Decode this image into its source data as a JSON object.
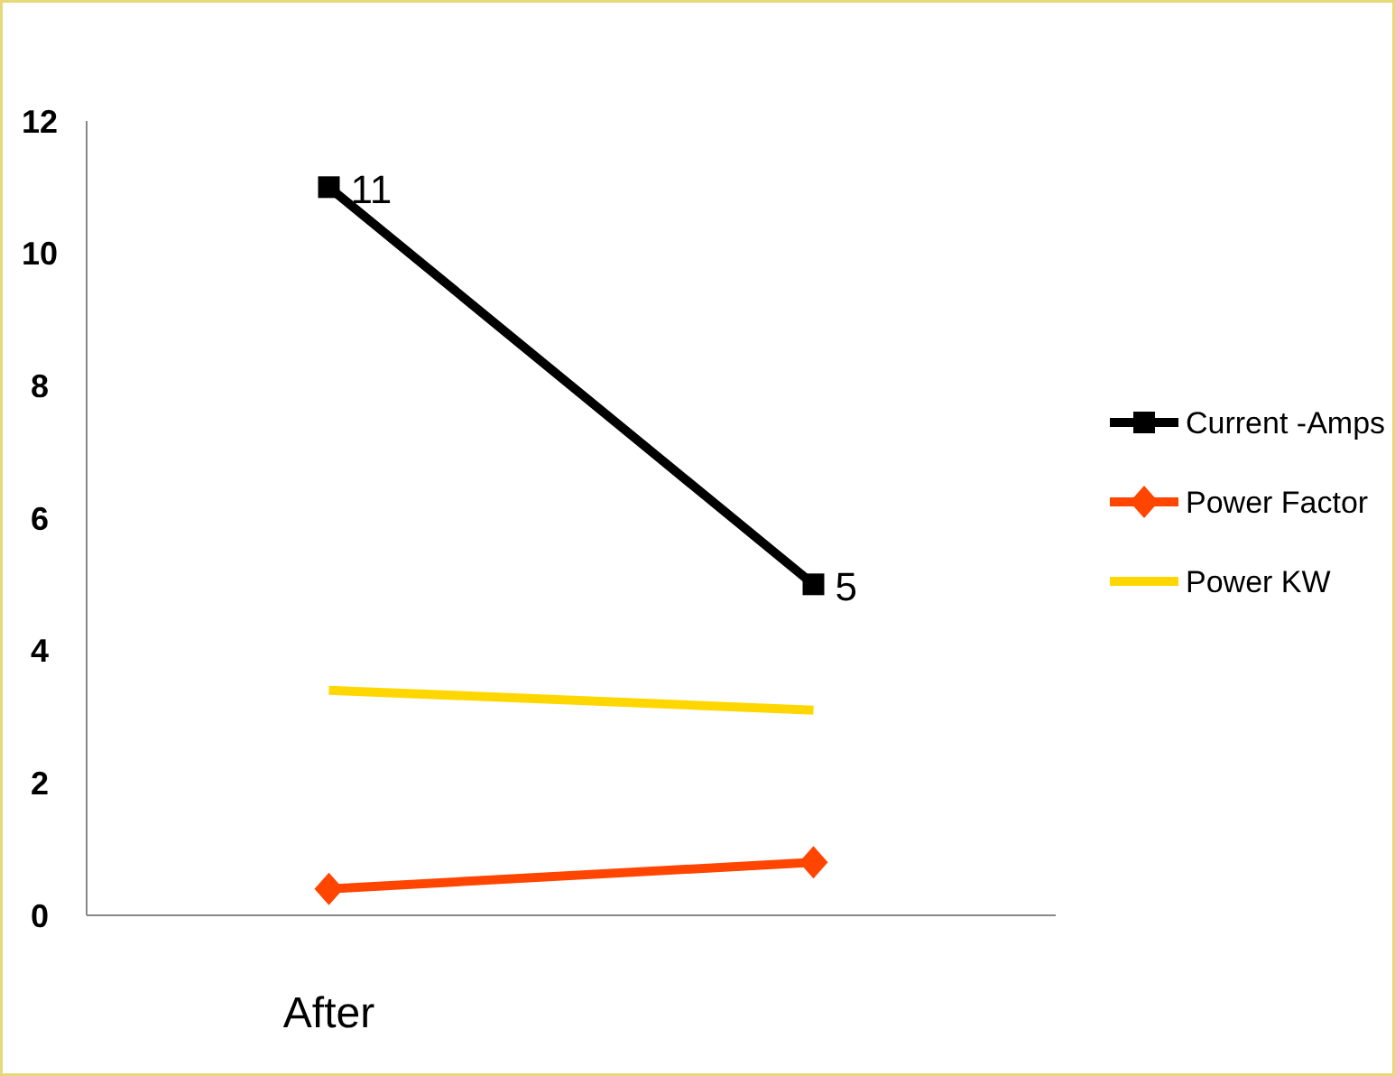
{
  "chart_data": {
    "type": "line",
    "categories": [
      "After",
      null
    ],
    "series": [
      {
        "name": "Current -Amps",
        "color": "#000000",
        "values": [
          11,
          5
        ],
        "marker": "square",
        "value_labels": [
          "11",
          "5"
        ]
      },
      {
        "name": "Power Factor",
        "color": "#ff4500",
        "values": [
          0.4,
          0.8
        ],
        "marker": "diamond"
      },
      {
        "name": "Power KW",
        "color": "#ffd700",
        "values": [
          3.4,
          3.1
        ],
        "marker": "none"
      }
    ],
    "ylim": [
      0,
      12
    ],
    "yticks": [
      0,
      2,
      4,
      6,
      8,
      10,
      12
    ],
    "grid": false,
    "legend": "right"
  }
}
